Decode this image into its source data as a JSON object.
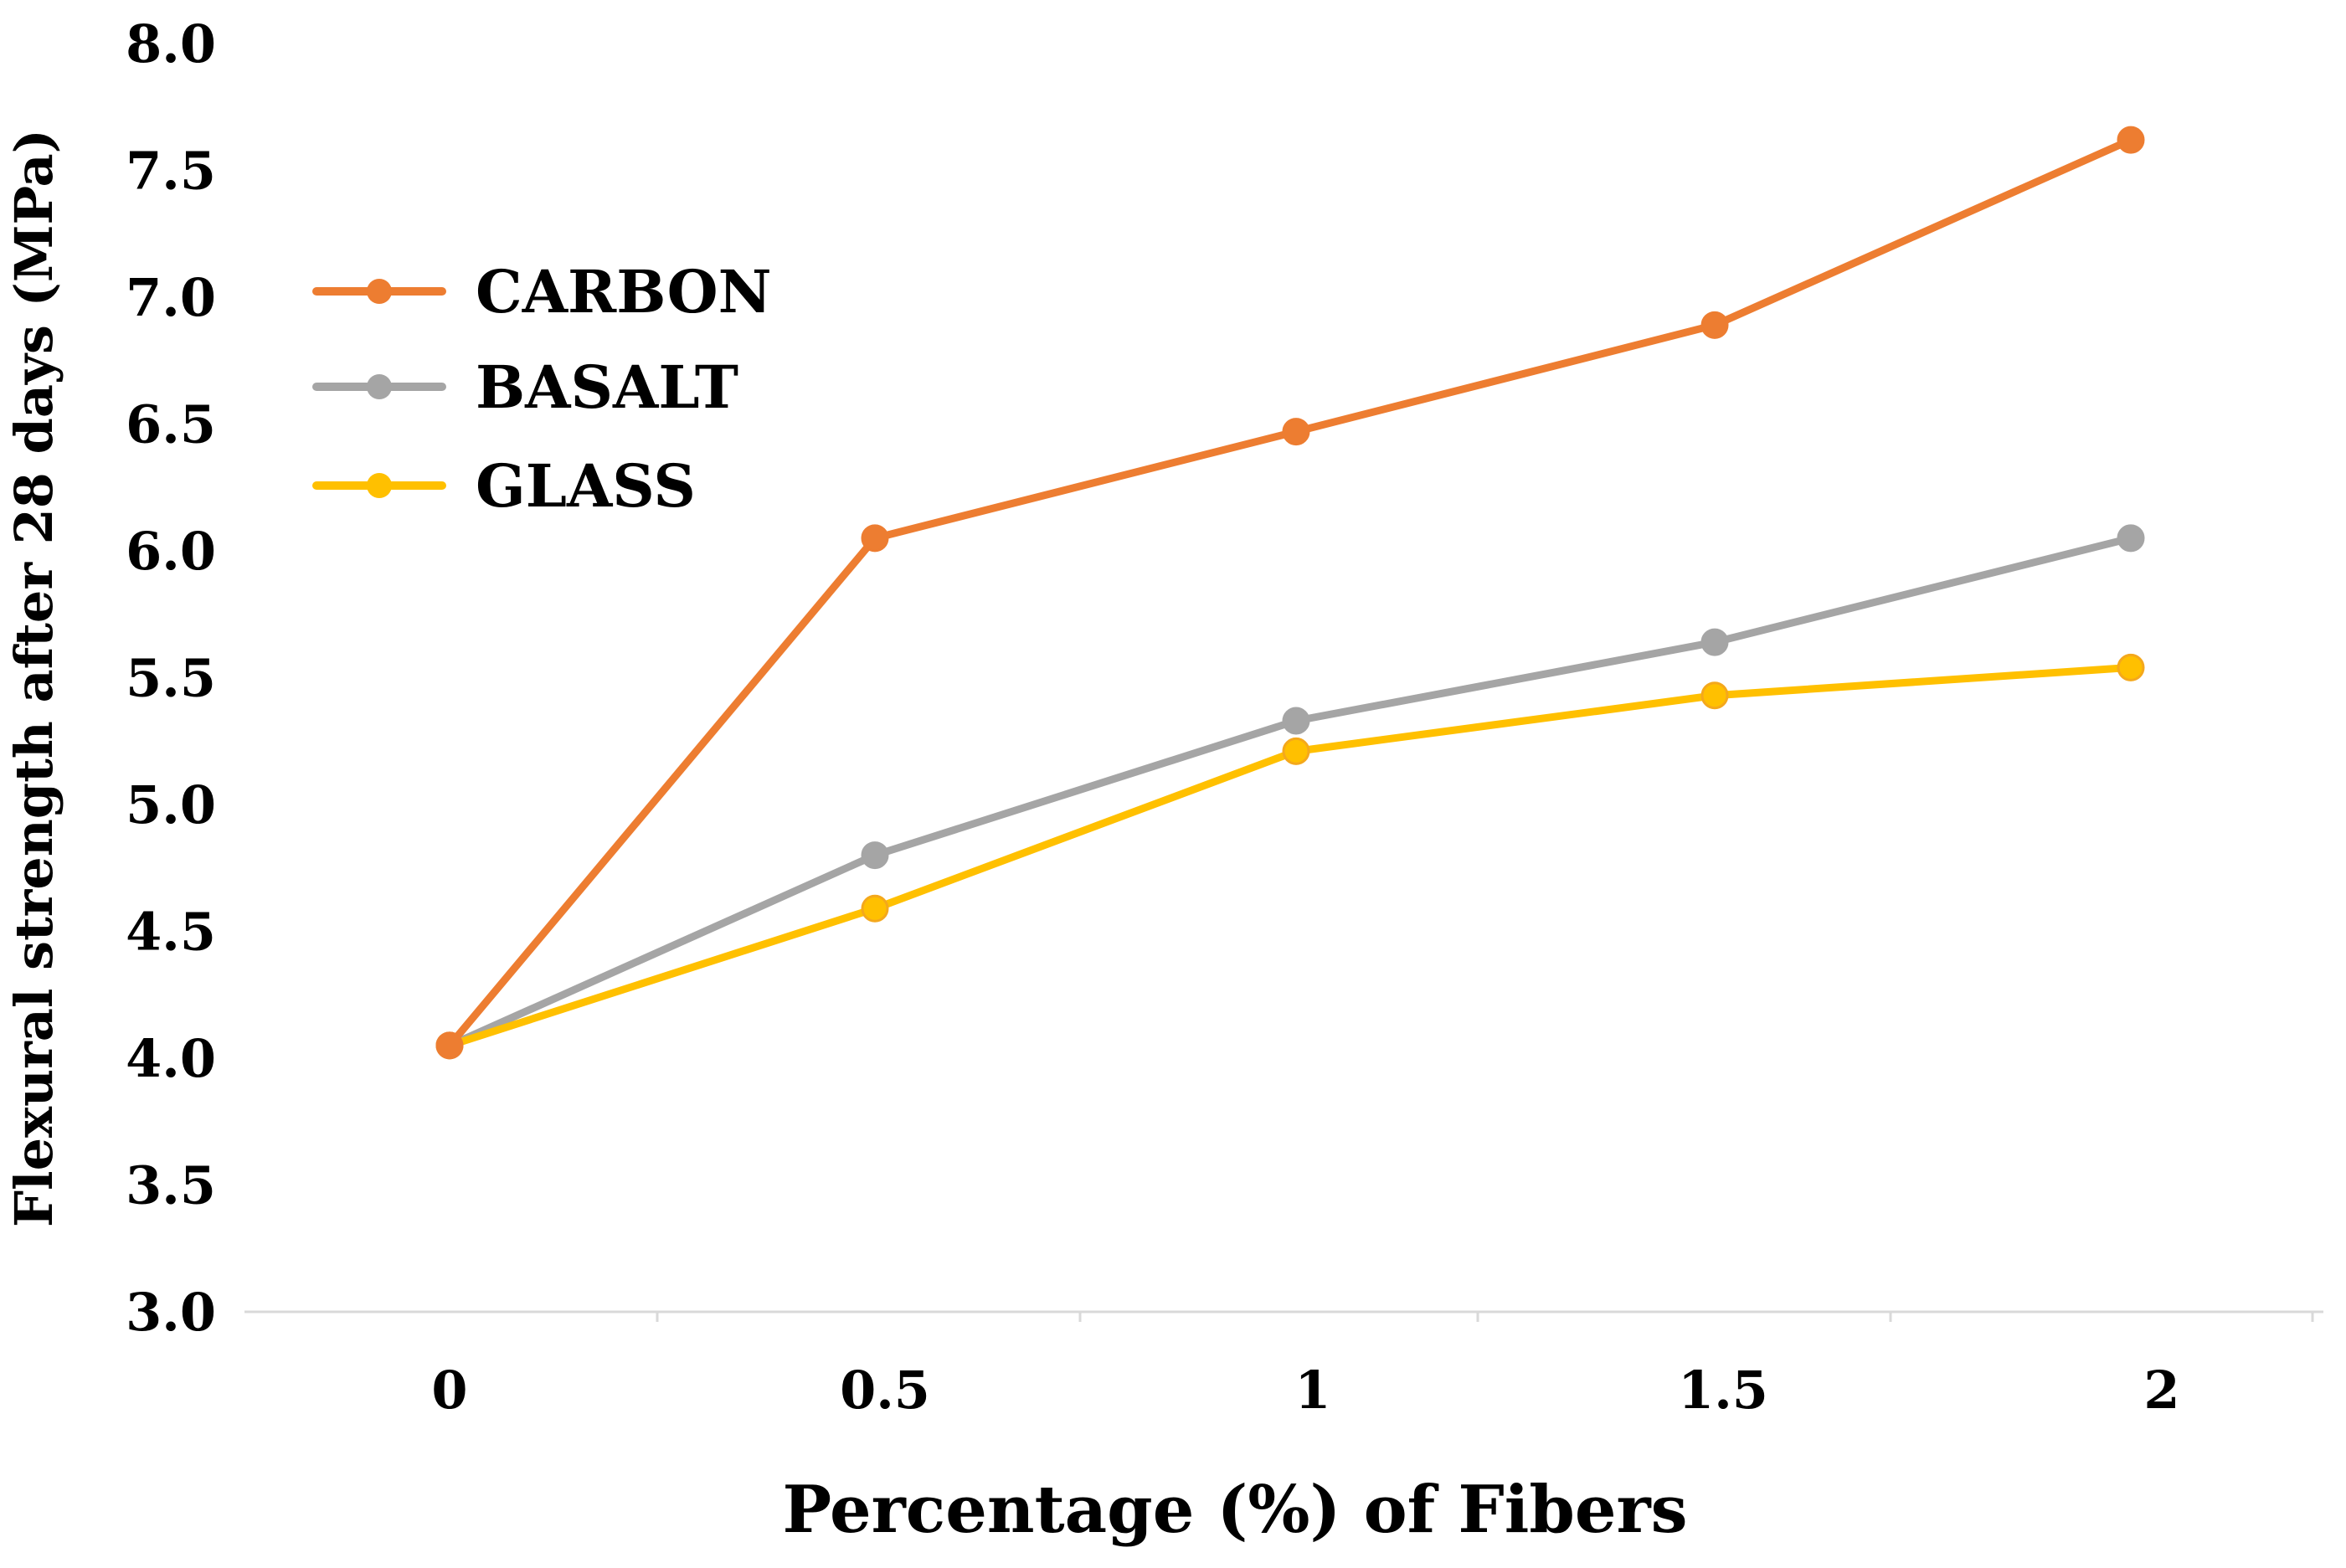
{
  "chart_data": {
    "type": "line",
    "title": "",
    "xlabel": "Percentage (%) of Fibers",
    "ylabel": "Flexural  strength after 28 days (MPa)",
    "x": [
      0,
      0.5,
      1,
      1.5,
      2
    ],
    "x_tick_labels": [
      "0",
      "0.5",
      "1",
      "1.5",
      "2"
    ],
    "y_tick_labels": [
      "3.0",
      "3.5",
      "4.0",
      "4.5",
      "5.0",
      "5.5",
      "6.0",
      "6.5",
      "7.0",
      "7.5",
      "8.0"
    ],
    "ylim": [
      3.0,
      8.0
    ],
    "grid": false,
    "legend_position": "top-left",
    "series": [
      {
        "name": "CARBON",
        "color": "#ED7D31",
        "values": [
          4.05,
          6.05,
          6.47,
          6.89,
          7.62
        ]
      },
      {
        "name": "BASALT",
        "color": "#A5A5A5",
        "values": [
          4.05,
          4.8,
          5.33,
          5.64,
          6.05
        ]
      },
      {
        "name": "GLASS",
        "color": "#FFC000",
        "values": [
          4.05,
          4.59,
          5.21,
          5.43,
          5.54
        ]
      }
    ]
  }
}
